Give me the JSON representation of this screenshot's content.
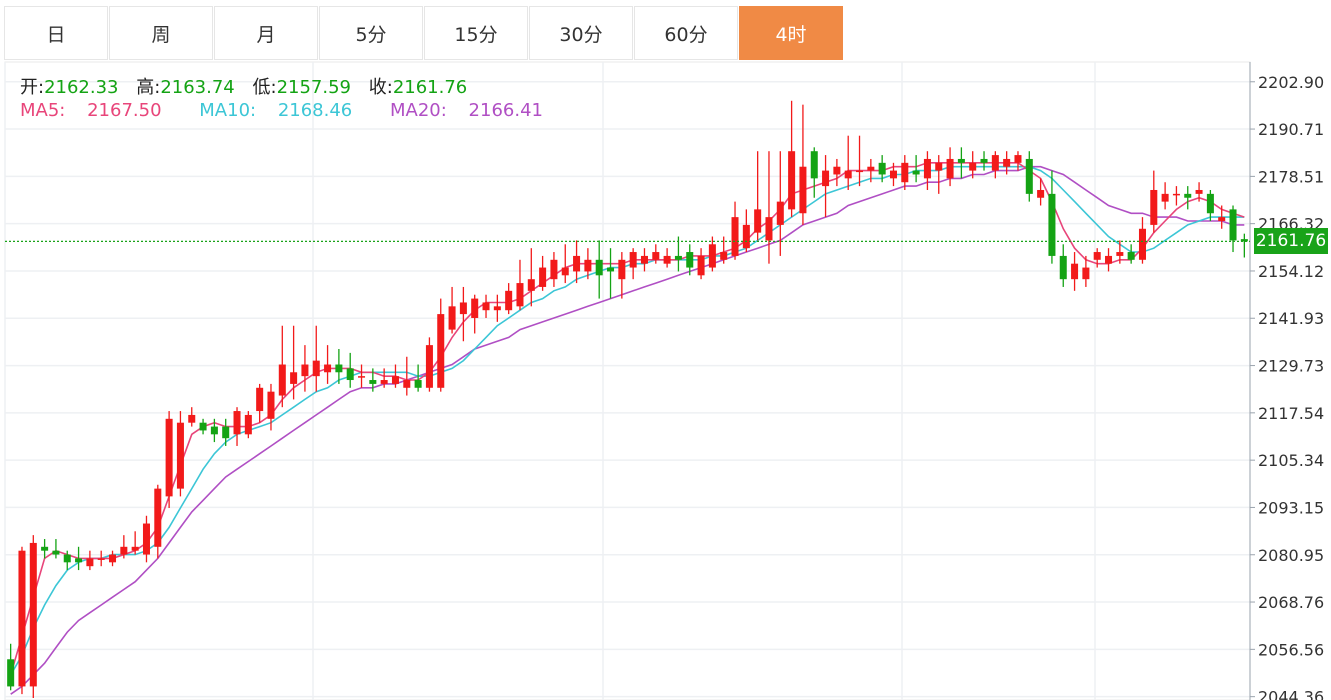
{
  "period_tabs": [
    {
      "label": "日",
      "active": false
    },
    {
      "label": "周",
      "active": false
    },
    {
      "label": "月",
      "active": false
    },
    {
      "label": "5分",
      "active": false
    },
    {
      "label": "15分",
      "active": false
    },
    {
      "label": "30分",
      "active": false
    },
    {
      "label": "60分",
      "active": false
    },
    {
      "label": "4时",
      "active": true
    }
  ],
  "ohlc": {
    "open_label": "开:",
    "open": "2162.33",
    "high_label": "高:",
    "high": "2163.74",
    "low_label": "低:",
    "low": "2157.59",
    "close_label": "收:",
    "close": "2161.76"
  },
  "ma": {
    "ma5_label": "MA5:",
    "ma5": "2167.50",
    "ma10_label": "MA10:",
    "ma10": "2168.46",
    "ma20_label": "MA20:",
    "ma20": "2166.41"
  },
  "last_price": "2161.76",
  "colors": {
    "up": "#f21a1a",
    "down": "#14a314",
    "ma5": "#e8457a",
    "ma10": "#3cc6d6",
    "ma20": "#b04fc4",
    "active_tab": "#f08a45",
    "last_line": "#19a319"
  },
  "chart_data": {
    "type": "candlestick",
    "y_ticks": [
      "2202.90",
      "2190.71",
      "2178.51",
      "2166.32",
      "2154.12",
      "2141.93",
      "2129.73",
      "2117.54",
      "2105.34",
      "2093.15",
      "2080.95",
      "2068.76",
      "2056.56",
      "2044.36"
    ],
    "ylim": [
      2043.5,
      2208
    ],
    "last": 2161.76,
    "candles": [
      [
        2054.0,
        2047.0,
        2058.0,
        2046.0
      ],
      [
        2047.0,
        2082.0,
        2083.0,
        2045.0
      ],
      [
        2047.0,
        2084.0,
        2086.0,
        2044.0
      ],
      [
        2083.0,
        2082.0,
        2085.0,
        2080.0
      ],
      [
        2082.0,
        2081.0,
        2085.0,
        2080.0
      ],
      [
        2081.0,
        2079.0,
        2082.0,
        2077.0
      ],
      [
        2080.0,
        2079.0,
        2083.0,
        2077.0
      ],
      [
        2078.0,
        2080.0,
        2082.0,
        2077.0
      ],
      [
        2080.0,
        2080.0,
        2082.0,
        2078.0
      ],
      [
        2079.0,
        2081.0,
        2082.0,
        2078.0
      ],
      [
        2081.0,
        2083.0,
        2086.0,
        2080.0
      ],
      [
        2082.0,
        2083.0,
        2087.0,
        2081.0
      ],
      [
        2081.0,
        2089.0,
        2091.0,
        2079.0
      ],
      [
        2083.0,
        2098.0,
        2099.0,
        2080.0
      ],
      [
        2096.0,
        2116.0,
        2118.0,
        2093.0
      ],
      [
        2098.0,
        2115.0,
        2118.0,
        2096.0
      ],
      [
        2115.0,
        2117.0,
        2119.0,
        2114.0
      ],
      [
        2115.0,
        2113.0,
        2116.0,
        2112.0
      ],
      [
        2114.0,
        2112.0,
        2116.0,
        2110.0
      ],
      [
        2114.0,
        2111.0,
        2116.0,
        2109.0
      ],
      [
        2112.0,
        2118.0,
        2119.0,
        2109.0
      ],
      [
        2112.0,
        2117.0,
        2118.0,
        2111.0
      ],
      [
        2118.0,
        2124.0,
        2125.0,
        2115.0
      ],
      [
        2116.0,
        2123.0,
        2125.0,
        2113.0
      ],
      [
        2122.0,
        2130.0,
        2140.0,
        2119.0
      ],
      [
        2125.0,
        2128.0,
        2140.0,
        2121.0
      ],
      [
        2127.0,
        2130.0,
        2135.0,
        2123.0
      ],
      [
        2127.0,
        2131.0,
        2140.0,
        2123.0
      ],
      [
        2128.0,
        2130.0,
        2135.0,
        2125.0
      ],
      [
        2130.0,
        2128.0,
        2134.0,
        2125.0
      ],
      [
        2129.0,
        2126.0,
        2133.0,
        2124.0
      ],
      [
        2127.0,
        2127.0,
        2130.0,
        2124.0
      ],
      [
        2126.0,
        2125.0,
        2129.0,
        2123.0
      ],
      [
        2125.0,
        2126.0,
        2129.0,
        2124.0
      ],
      [
        2125.0,
        2127.0,
        2130.0,
        2124.0
      ],
      [
        2124.0,
        2126.0,
        2132.0,
        2122.0
      ],
      [
        2126.0,
        2124.0,
        2130.0,
        2123.0
      ],
      [
        2124.0,
        2135.0,
        2137.0,
        2123.0
      ],
      [
        2124.0,
        2143.0,
        2147.0,
        2123.0
      ],
      [
        2139.0,
        2145.0,
        2150.0,
        2138.0
      ],
      [
        2143.0,
        2146.0,
        2150.0,
        2136.0
      ],
      [
        2142.0,
        2147.0,
        2148.0,
        2138.0
      ],
      [
        2144.0,
        2146.0,
        2148.0,
        2142.0
      ],
      [
        2144.0,
        2145.0,
        2148.0,
        2141.0
      ],
      [
        2144.0,
        2149.0,
        2151.0,
        2143.0
      ],
      [
        2145.0,
        2151.0,
        2157.0,
        2144.0
      ],
      [
        2149.0,
        2152.0,
        2160.0,
        2145.0
      ],
      [
        2150.0,
        2155.0,
        2158.0,
        2149.0
      ],
      [
        2152.0,
        2157.0,
        2159.0,
        2150.0
      ],
      [
        2153.0,
        2155.0,
        2161.0,
        2151.0
      ],
      [
        2154.0,
        2158.0,
        2162.0,
        2151.0
      ],
      [
        2154.0,
        2157.0,
        2160.0,
        2152.0
      ],
      [
        2157.0,
        2153.0,
        2162.0,
        2147.0
      ],
      [
        2155.0,
        2154.0,
        2160.0,
        2147.0
      ],
      [
        2152.0,
        2157.0,
        2159.0,
        2147.0
      ],
      [
        2155.0,
        2159.0,
        2160.0,
        2152.0
      ],
      [
        2156.0,
        2158.0,
        2160.0,
        2154.0
      ],
      [
        2157.0,
        2159.0,
        2161.0,
        2156.0
      ],
      [
        2156.0,
        2158.0,
        2160.0,
        2155.0
      ],
      [
        2158.0,
        2157.0,
        2163.0,
        2154.0
      ],
      [
        2159.0,
        2155.0,
        2161.0,
        2153.0
      ],
      [
        2153.0,
        2158.0,
        2160.0,
        2152.0
      ],
      [
        2155.0,
        2161.0,
        2163.0,
        2154.0
      ],
      [
        2157.0,
        2159.0,
        2163.0,
        2156.0
      ],
      [
        2158.0,
        2168.0,
        2172.0,
        2157.0
      ],
      [
        2160.0,
        2166.0,
        2170.0,
        2159.0
      ],
      [
        2164.0,
        2170.0,
        2185.0,
        2162.0
      ],
      [
        2162.0,
        2168.0,
        2185.0,
        2156.0
      ],
      [
        2166.0,
        2172.0,
        2185.0,
        2158.0
      ],
      [
        2170.0,
        2185.0,
        2198.0,
        2168.0
      ],
      [
        2169.0,
        2181.0,
        2197.0,
        2166.0
      ],
      [
        2185.0,
        2178.0,
        2186.0,
        2173.0
      ],
      [
        2176.0,
        2180.0,
        2184.0,
        2168.0
      ],
      [
        2179.0,
        2181.0,
        2183.0,
        2176.0
      ],
      [
        2178.0,
        2180.0,
        2189.0,
        2175.0
      ],
      [
        2180.0,
        2180.0,
        2189.0,
        2176.0
      ],
      [
        2180.0,
        2181.0,
        2183.0,
        2177.0
      ],
      [
        2182.0,
        2179.0,
        2184.0,
        2177.0
      ],
      [
        2178.0,
        2180.0,
        2182.0,
        2176.0
      ],
      [
        2177.0,
        2182.0,
        2184.0,
        2175.0
      ],
      [
        2180.0,
        2179.0,
        2184.0,
        2177.0
      ],
      [
        2178.0,
        2183.0,
        2185.0,
        2175.0
      ],
      [
        2180.0,
        2182.0,
        2184.0,
        2174.0
      ],
      [
        2178.0,
        2183.0,
        2186.0,
        2176.0
      ],
      [
        2183.0,
        2182.0,
        2186.0,
        2178.0
      ],
      [
        2180.0,
        2182.0,
        2185.0,
        2178.0
      ],
      [
        2183.0,
        2182.0,
        2185.0,
        2180.0
      ],
      [
        2180.0,
        2184.0,
        2185.0,
        2178.0
      ],
      [
        2181.0,
        2183.0,
        2185.0,
        2179.0
      ],
      [
        2182.0,
        2184.0,
        2185.0,
        2180.0
      ],
      [
        2183.0,
        2174.0,
        2185.0,
        2172.0
      ],
      [
        2173.0,
        2175.0,
        2178.0,
        2171.0
      ],
      [
        2174.0,
        2158.0,
        2180.0,
        2156.0
      ],
      [
        2158.0,
        2152.0,
        2161.0,
        2150.0
      ],
      [
        2152.0,
        2156.0,
        2159.0,
        2149.0
      ],
      [
        2152.0,
        2155.0,
        2158.0,
        2150.0
      ],
      [
        2157.0,
        2159.0,
        2160.0,
        2155.0
      ],
      [
        2156.0,
        2158.0,
        2160.0,
        2154.0
      ],
      [
        2158.0,
        2159.0,
        2162.0,
        2156.0
      ],
      [
        2159.0,
        2157.0,
        2161.0,
        2156.0
      ],
      [
        2157.0,
        2165.0,
        2168.0,
        2156.0
      ],
      [
        2166.0,
        2175.0,
        2180.0,
        2164.0
      ],
      [
        2172.0,
        2174.0,
        2177.0,
        2170.0
      ],
      [
        2174.0,
        2174.0,
        2176.0,
        2171.0
      ],
      [
        2174.0,
        2173.0,
        2176.0,
        2170.0
      ],
      [
        2174.0,
        2175.0,
        2177.0,
        2172.0
      ],
      [
        2174.0,
        2169.0,
        2175.0,
        2167.0
      ],
      [
        2167.0,
        2168.0,
        2171.0,
        2165.0
      ],
      [
        2170.0,
        2162.0,
        2171.0,
        2159.0
      ],
      [
        2162.33,
        2161.76,
        2163.74,
        2157.59
      ]
    ],
    "ma5": [
      2050,
      2060,
      2070,
      2080,
      2082,
      2081,
      2080,
      2080,
      2080,
      2080,
      2081,
      2082,
      2084,
      2088,
      2096,
      2104,
      2112,
      2114,
      2115,
      2114,
      2114,
      2114,
      2115,
      2117,
      2121,
      2124,
      2126,
      2128,
      2129,
      2129,
      2129,
      2128,
      2128,
      2127,
      2127,
      2126,
      2126,
      2128,
      2132,
      2137,
      2141,
      2144,
      2146,
      2146,
      2146,
      2147,
      2149,
      2151,
      2153,
      2155,
      2156,
      2156,
      2156,
      2156,
      2156,
      2157,
      2157,
      2157,
      2157,
      2157,
      2158,
      2158,
      2158,
      2159,
      2160,
      2162,
      2165,
      2167,
      2170,
      2174,
      2175,
      2176,
      2177,
      2178,
      2180,
      2180,
      2180,
      2180,
      2181,
      2181,
      2181,
      2182,
      2182,
      2182,
      2182,
      2182,
      2182,
      2182,
      2182,
      2182,
      2180,
      2178,
      2172,
      2165,
      2160,
      2157,
      2156,
      2156,
      2157,
      2157,
      2160,
      2164,
      2167,
      2170,
      2172,
      2173,
      2172,
      2170,
      2169,
      2168
    ],
    "ma10": [
      2050,
      2055,
      2062,
      2068,
      2073,
      2077,
      2079,
      2080,
      2080,
      2081,
      2081,
      2081,
      2082,
      2084,
      2088,
      2093,
      2098,
      2103,
      2107,
      2110,
      2112,
      2113,
      2114,
      2115,
      2117,
      2119,
      2121,
      2123,
      2124,
      2126,
      2127,
      2128,
      2128,
      2128,
      2128,
      2128,
      2127,
      2127,
      2128,
      2129,
      2131,
      2134,
      2137,
      2140,
      2142,
      2144,
      2146,
      2147,
      2149,
      2150,
      2152,
      2153,
      2154,
      2155,
      2155,
      2156,
      2156,
      2157,
      2157,
      2157,
      2157,
      2157,
      2158,
      2158,
      2159,
      2160,
      2162,
      2164,
      2166,
      2168,
      2170,
      2172,
      2174,
      2175,
      2176,
      2177,
      2178,
      2178,
      2179,
      2179,
      2180,
      2180,
      2180,
      2181,
      2181,
      2181,
      2181,
      2181,
      2181,
      2181,
      2181,
      2180,
      2178,
      2175,
      2172,
      2169,
      2166,
      2163,
      2161,
      2159,
      2159,
      2160,
      2162,
      2164,
      2166,
      2167,
      2168,
      2168,
      2168,
      2168
    ],
    "ma20": [
      2045,
      2047,
      2050,
      2053,
      2057,
      2061,
      2064,
      2066,
      2068,
      2070,
      2072,
      2074,
      2077,
      2080,
      2084,
      2088,
      2092,
      2095,
      2098,
      2101,
      2103,
      2105,
      2107,
      2109,
      2111,
      2113,
      2115,
      2117,
      2119,
      2121,
      2123,
      2124,
      2124,
      2125,
      2125,
      2126,
      2127,
      2128,
      2129,
      2130,
      2132,
      2134,
      2135,
      2136,
      2137,
      2139,
      2140,
      2141,
      2142,
      2143,
      2144,
      2145,
      2146,
      2147,
      2148,
      2149,
      2150,
      2151,
      2152,
      2153,
      2154,
      2155,
      2156,
      2157,
      2158,
      2159,
      2160,
      2161,
      2162,
      2164,
      2166,
      2167,
      2168,
      2169,
      2171,
      2172,
      2173,
      2174,
      2175,
      2176,
      2176,
      2177,
      2177,
      2178,
      2178,
      2179,
      2179,
      2180,
      2180,
      2180,
      2181,
      2181,
      2180,
      2179,
      2177,
      2175,
      2173,
      2171,
      2170,
      2169,
      2169,
      2168,
      2168,
      2168,
      2167,
      2167,
      2167,
      2167,
      2166,
      2166
    ]
  }
}
